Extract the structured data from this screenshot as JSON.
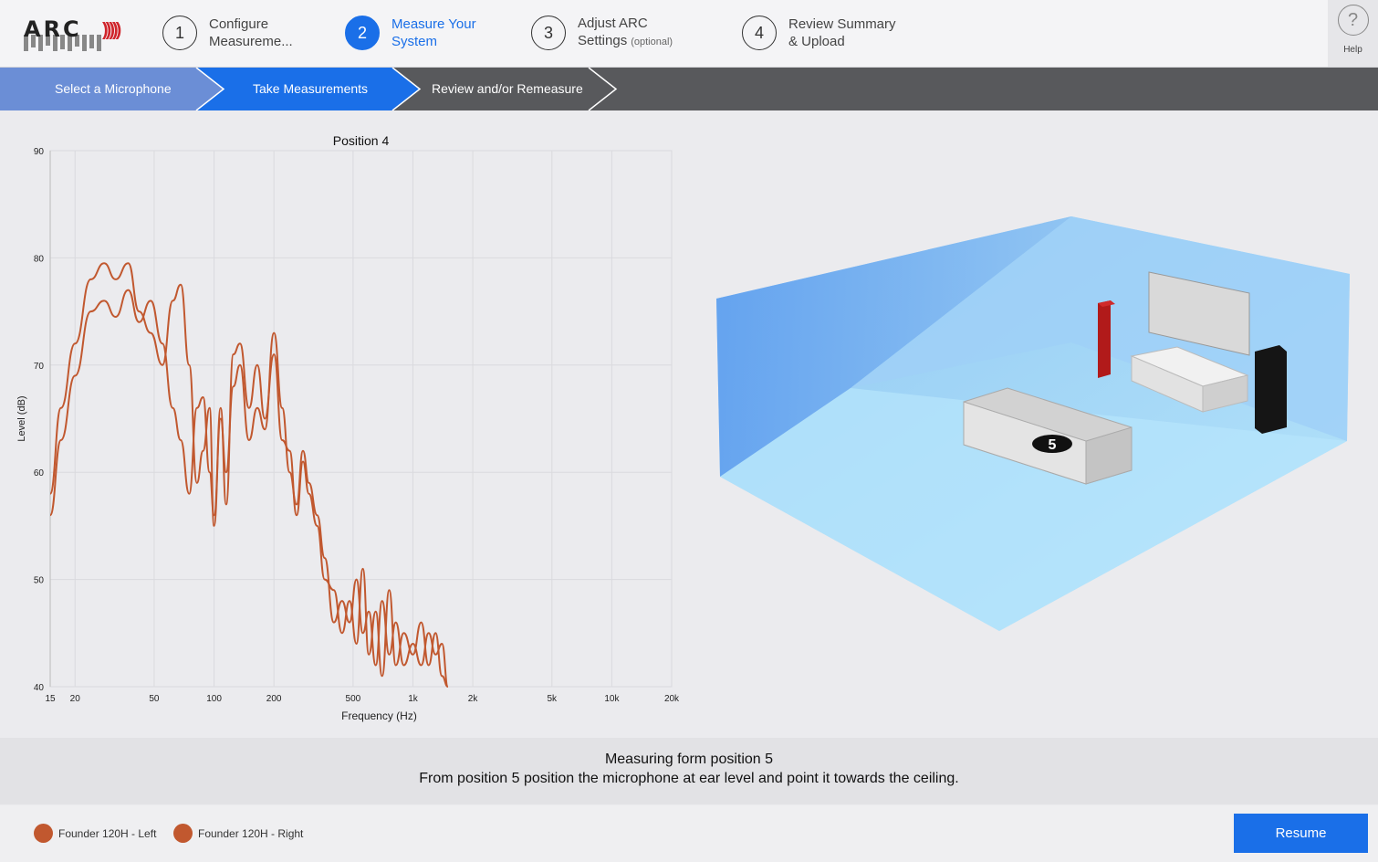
{
  "header": {
    "logo_text": "ARC",
    "steps": [
      {
        "number": "1",
        "line1": "Configure",
        "line2": "Measureme...",
        "optional": "",
        "active": false
      },
      {
        "number": "2",
        "line1": "Measure Your",
        "line2": "System",
        "optional": "",
        "active": true
      },
      {
        "number": "3",
        "line1": "Adjust ARC",
        "line2": "Settings",
        "optional": "(optional)",
        "active": false
      },
      {
        "number": "4",
        "line1": "Review Summary",
        "line2": "& Upload",
        "optional": "",
        "active": false
      }
    ],
    "help_label": "Help"
  },
  "breadcrumbs": [
    "Select a Microphone",
    "Take Measurements",
    "Review and/or Remeasure"
  ],
  "chart_data": {
    "type": "line",
    "title": "Position 4",
    "xlabel": "Frequency (Hz)",
    "ylabel": "Level (dB)",
    "xscale": "log",
    "xlim": [
      15,
      20000
    ],
    "ylim": [
      40,
      90
    ],
    "xticks": [
      15,
      20,
      50,
      100,
      200,
      500,
      1000,
      2000,
      5000,
      10000,
      20000
    ],
    "xtick_labels": [
      "15",
      "20",
      "50",
      "100",
      "200",
      "500",
      "1k",
      "2k",
      "5k",
      "10k",
      "20k"
    ],
    "yticks": [
      40,
      50,
      60,
      70,
      80,
      90
    ],
    "grid": true,
    "series": [
      {
        "name": "Founder 120H - Left",
        "color": "#c1582f",
        "x": [
          15,
          17,
          20,
          24,
          28,
          32,
          37,
          42,
          48,
          55,
          62,
          68,
          75,
          82,
          88,
          95,
          100,
          108,
          115,
          125,
          135,
          150,
          165,
          180,
          200,
          220,
          240,
          260,
          280,
          300,
          330,
          360,
          400,
          440,
          480,
          520,
          560,
          600,
          650,
          700,
          760,
          820,
          900,
          1000,
          1100,
          1200,
          1300,
          1400,
          1500
        ],
        "y": [
          58,
          66,
          72,
          78,
          79.5,
          78,
          79.5,
          75,
          73,
          70,
          76,
          77.5,
          70,
          59,
          62,
          66,
          55,
          66,
          57,
          71,
          72,
          66,
          70,
          65,
          71,
          63,
          62,
          56,
          61,
          58,
          55,
          50,
          49,
          45,
          48,
          44,
          51,
          43,
          47,
          41,
          49,
          42,
          45,
          43,
          46,
          42,
          45,
          41,
          40
        ]
      },
      {
        "name": "Founder 120H - Right",
        "color": "#c1582f",
        "x": [
          15,
          17,
          20,
          24,
          28,
          32,
          37,
          42,
          48,
          55,
          62,
          68,
          75,
          82,
          88,
          95,
          100,
          108,
          115,
          125,
          135,
          150,
          165,
          180,
          200,
          220,
          240,
          260,
          280,
          300,
          330,
          360,
          400,
          440,
          480,
          520,
          560,
          600,
          650,
          700,
          760,
          820,
          900,
          1000,
          1100,
          1200,
          1300,
          1400,
          1500
        ],
        "y": [
          56,
          63,
          69,
          75,
          76,
          74.5,
          77,
          74,
          76,
          72,
          66,
          63,
          58,
          66,
          67,
          60,
          56,
          65,
          60,
          68,
          70,
          63,
          66,
          64,
          73,
          66,
          60,
          57,
          62,
          59,
          56,
          52,
          46,
          48,
          46,
          50,
          45,
          47,
          42,
          48,
          43,
          46,
          42,
          44,
          42,
          45,
          43,
          44,
          40
        ]
      }
    ]
  },
  "room": {
    "position_marker": "5"
  },
  "instructions": {
    "line1": "Measuring form position 5",
    "line2": "From position 5 position the microphone at ear level and point it towards the ceiling."
  },
  "legend": [
    "Founder 120H - Left",
    "Founder 120H - Right"
  ],
  "footer": {
    "resume_label": "Resume"
  }
}
